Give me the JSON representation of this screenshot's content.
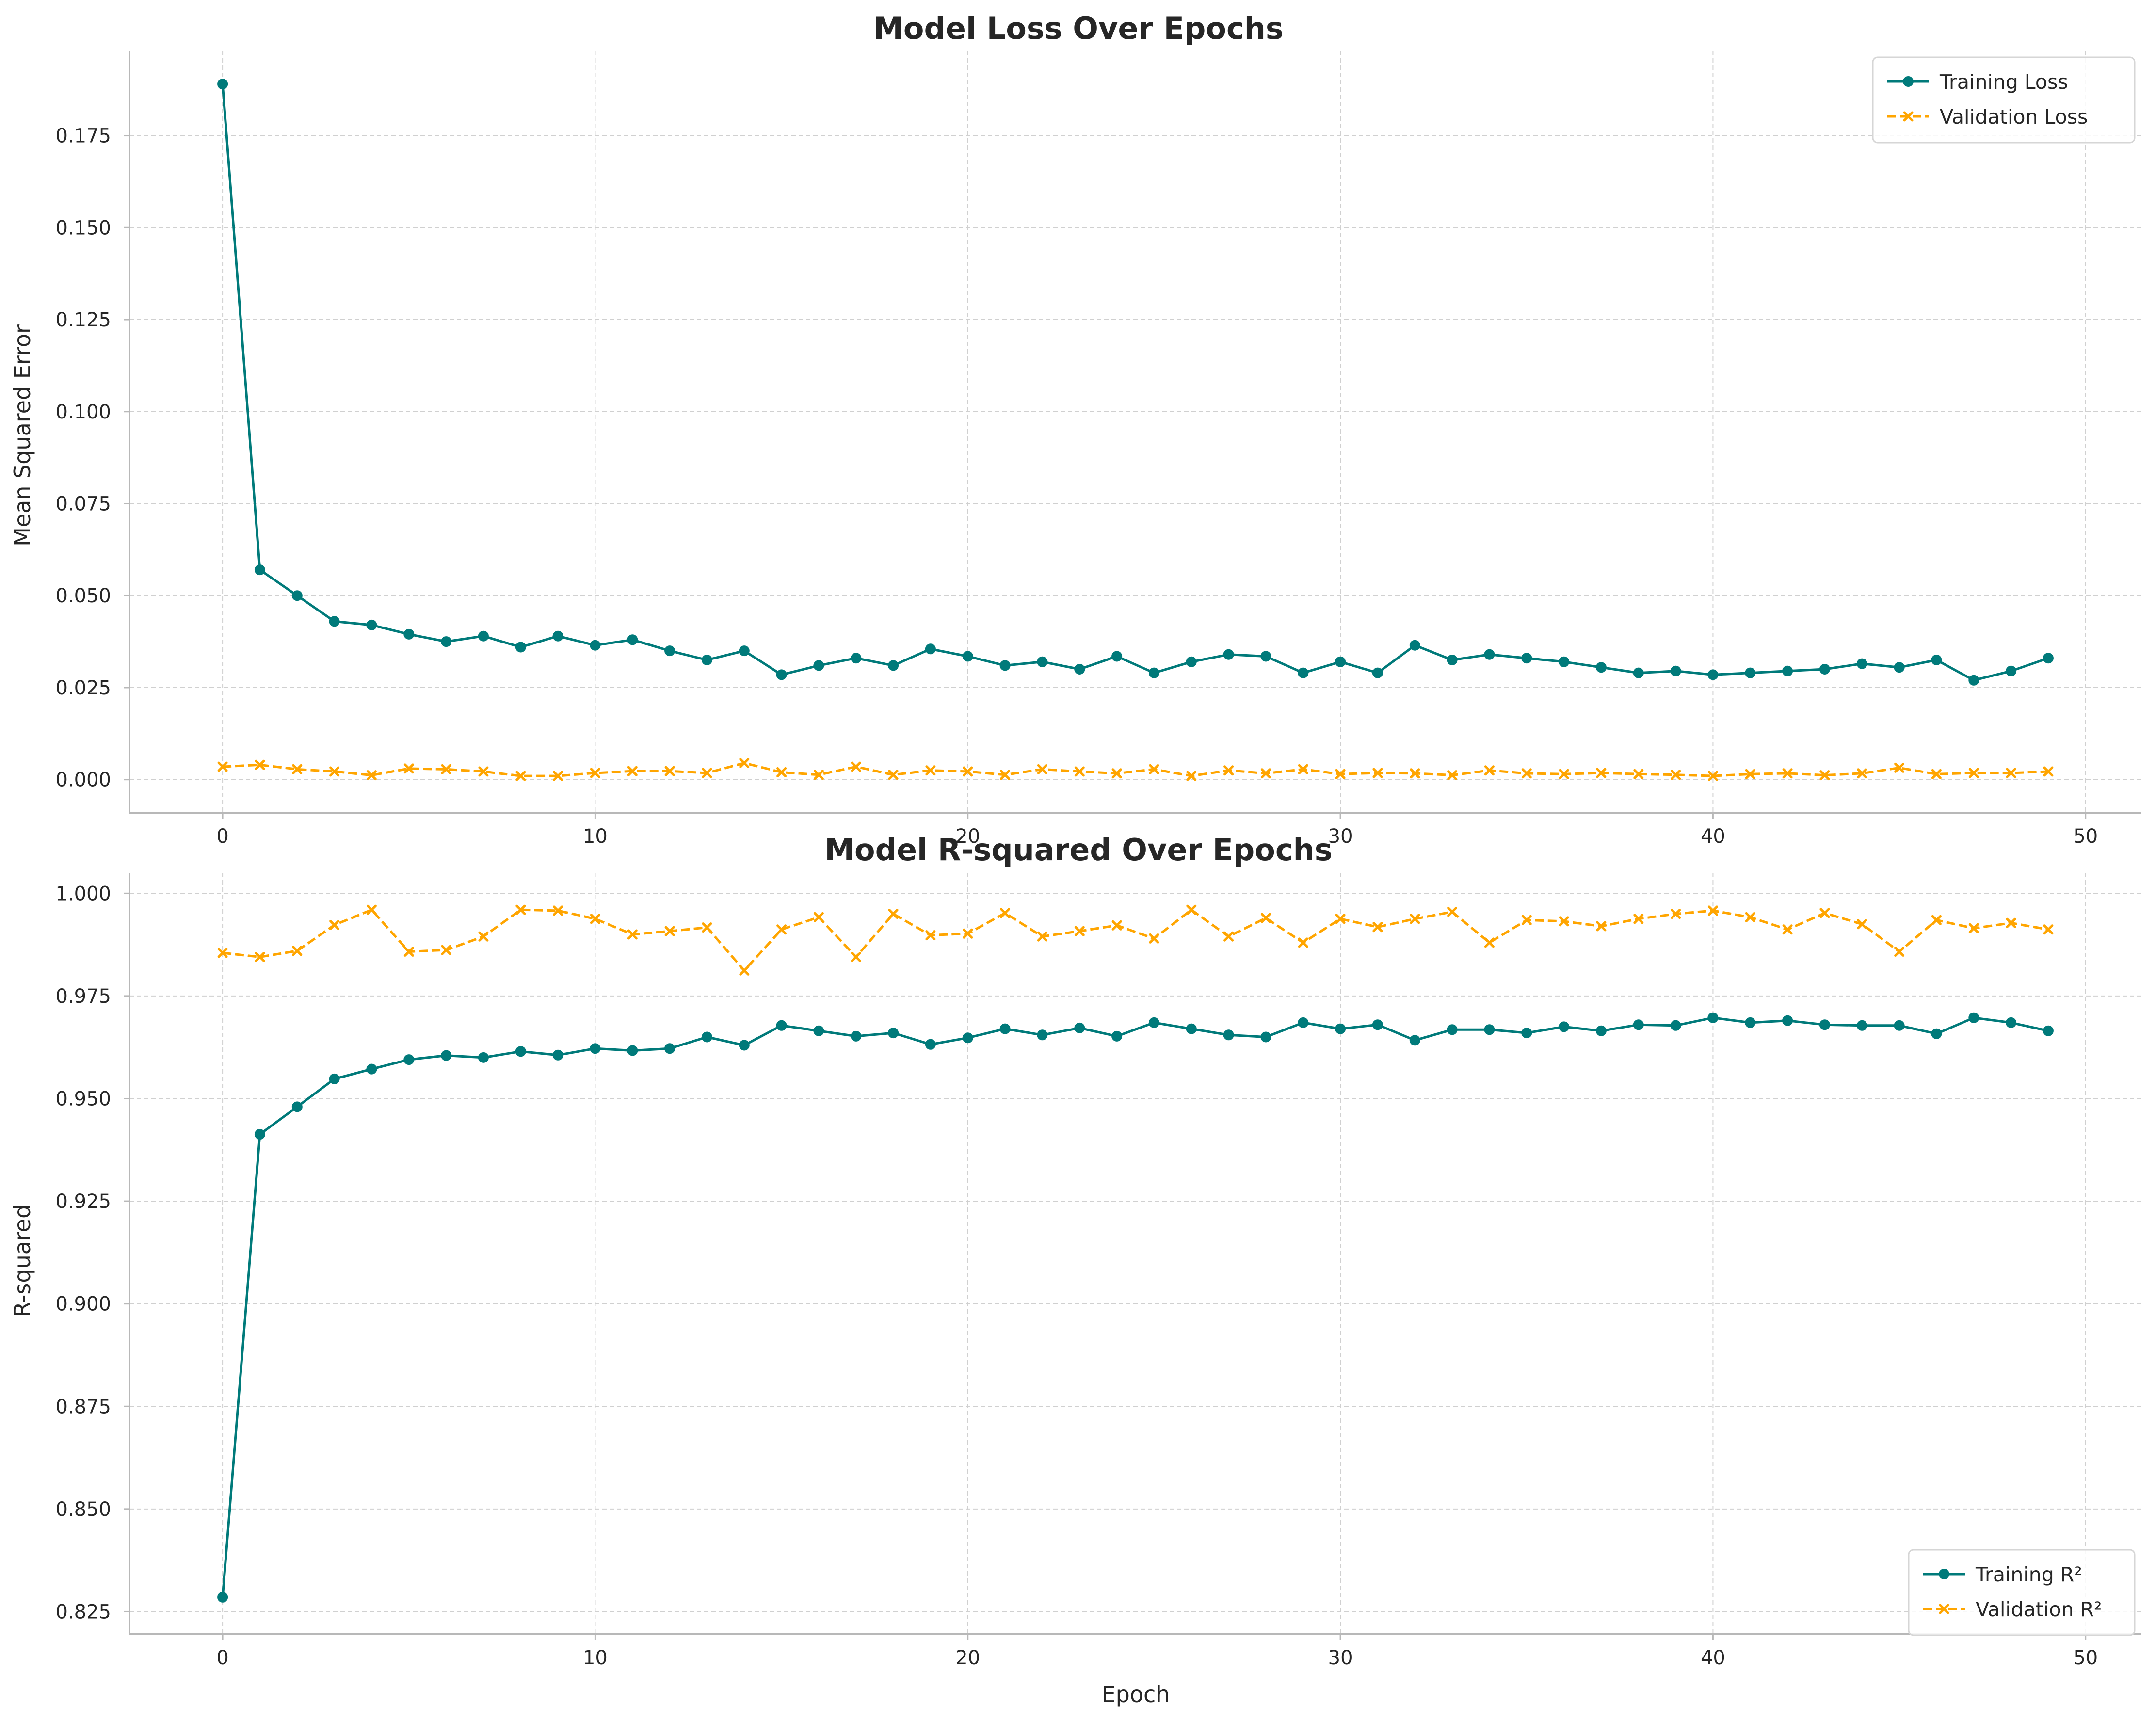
{
  "chart_data": [
    {
      "type": "line",
      "title": "Model Loss Over Epochs",
      "xlabel": "",
      "ylabel": "Mean Squared Error",
      "xlim": [
        -2.5,
        51.5
      ],
      "ylim": [
        -0.009,
        0.198
      ],
      "xticks": [
        0,
        10,
        20,
        30,
        40,
        50
      ],
      "xtick_labels": [
        "0",
        "10",
        "20",
        "30",
        "40",
        "50"
      ],
      "yticks": [
        0.0,
        0.025,
        0.05,
        0.075,
        0.1,
        0.125,
        0.15,
        0.175
      ],
      "ytick_labels": [
        "0.000",
        "0.025",
        "0.050",
        "0.075",
        "0.100",
        "0.125",
        "0.150",
        "0.175"
      ],
      "grid": true,
      "legend": "top-right",
      "x": [
        0,
        1,
        2,
        3,
        4,
        5,
        6,
        7,
        8,
        9,
        10,
        11,
        12,
        13,
        14,
        15,
        16,
        17,
        18,
        19,
        20,
        21,
        22,
        23,
        24,
        25,
        26,
        27,
        28,
        29,
        30,
        31,
        32,
        33,
        34,
        35,
        36,
        37,
        38,
        39,
        40,
        41,
        42,
        43,
        44,
        45,
        46,
        47,
        48,
        49
      ],
      "series": [
        {
          "name": "Training Loss",
          "color": "#007a7a",
          "marker": "circle",
          "linestyle": "solid",
          "values": [
            0.189,
            0.057,
            0.05,
            0.043,
            0.042,
            0.0395,
            0.0375,
            0.039,
            0.036,
            0.039,
            0.0365,
            0.038,
            0.035,
            0.0325,
            0.035,
            0.0285,
            0.031,
            0.033,
            0.031,
            0.0355,
            0.0335,
            0.031,
            0.032,
            0.03,
            0.0335,
            0.029,
            0.032,
            0.034,
            0.0335,
            0.029,
            0.032,
            0.029,
            0.0365,
            0.0325,
            0.034,
            0.033,
            0.032,
            0.0305,
            0.029,
            0.0295,
            0.0285,
            0.029,
            0.0295,
            0.03,
            0.0315,
            0.0305,
            0.0325,
            0.027,
            0.0295,
            0.033
          ]
        },
        {
          "name": "Validation Loss",
          "color": "#ffa500",
          "marker": "x",
          "linestyle": "dashed",
          "values": [
            0.0035,
            0.004,
            0.0028,
            0.0022,
            0.0012,
            0.003,
            0.0028,
            0.0022,
            0.001,
            0.001,
            0.0018,
            0.0023,
            0.0023,
            0.0018,
            0.0045,
            0.002,
            0.0013,
            0.0035,
            0.0013,
            0.0025,
            0.0022,
            0.0013,
            0.0028,
            0.0022,
            0.0017,
            0.0028,
            0.001,
            0.0025,
            0.0017,
            0.0028,
            0.0015,
            0.0018,
            0.0017,
            0.0012,
            0.0025,
            0.0017,
            0.0015,
            0.0018,
            0.0015,
            0.0013,
            0.001,
            0.0015,
            0.0017,
            0.0012,
            0.0017,
            0.0032,
            0.0015,
            0.0018,
            0.0018,
            0.0022
          ]
        }
      ]
    },
    {
      "type": "line",
      "title": "Model R-squared Over Epochs",
      "xlabel": "Epoch",
      "ylabel": "R-squared",
      "xlim": [
        -2.5,
        51.5
      ],
      "ylim": [
        0.8195,
        1.005
      ],
      "xticks": [
        0,
        10,
        20,
        30,
        40,
        50
      ],
      "xtick_labels": [
        "0",
        "10",
        "20",
        "30",
        "40",
        "50"
      ],
      "yticks": [
        0.825,
        0.85,
        0.875,
        0.9,
        0.925,
        0.95,
        0.975,
        1.0
      ],
      "ytick_labels": [
        "0.825",
        "0.850",
        "0.875",
        "0.900",
        "0.925",
        "0.950",
        "0.975",
        "1.000"
      ],
      "grid": true,
      "legend": "bottom-right",
      "x": [
        0,
        1,
        2,
        3,
        4,
        5,
        6,
        7,
        8,
        9,
        10,
        11,
        12,
        13,
        14,
        15,
        16,
        17,
        18,
        19,
        20,
        21,
        22,
        23,
        24,
        25,
        26,
        27,
        28,
        29,
        30,
        31,
        32,
        33,
        34,
        35,
        36,
        37,
        38,
        39,
        40,
        41,
        42,
        43,
        44,
        45,
        46,
        47,
        48,
        49
      ],
      "series": [
        {
          "name": "Training R²",
          "color": "#007a7a",
          "marker": "circle",
          "linestyle": "solid",
          "values": [
            0.8285,
            0.9413,
            0.948,
            0.9548,
            0.9572,
            0.9595,
            0.9605,
            0.96,
            0.9615,
            0.9606,
            0.9622,
            0.9617,
            0.9622,
            0.965,
            0.963,
            0.9678,
            0.9665,
            0.9652,
            0.966,
            0.9632,
            0.9648,
            0.967,
            0.9655,
            0.9672,
            0.9652,
            0.9685,
            0.967,
            0.9655,
            0.965,
            0.9685,
            0.967,
            0.968,
            0.9642,
            0.9668,
            0.9668,
            0.966,
            0.9675,
            0.9665,
            0.968,
            0.9678,
            0.9697,
            0.9685,
            0.969,
            0.968,
            0.9678,
            0.9678,
            0.9658,
            0.9697,
            0.9685,
            0.9665
          ]
        },
        {
          "name": "Validation R²",
          "color": "#ffa500",
          "marker": "x",
          "linestyle": "dashed",
          "values": [
            0.9855,
            0.9845,
            0.986,
            0.9923,
            0.996,
            0.9858,
            0.9862,
            0.9895,
            0.996,
            0.9958,
            0.9938,
            0.99,
            0.9908,
            0.9917,
            0.9812,
            0.9912,
            0.9942,
            0.9845,
            0.995,
            0.9898,
            0.9902,
            0.9952,
            0.9895,
            0.9908,
            0.9922,
            0.989,
            0.996,
            0.9895,
            0.994,
            0.988,
            0.9938,
            0.9918,
            0.9938,
            0.9955,
            0.988,
            0.9935,
            0.9932,
            0.992,
            0.9938,
            0.995,
            0.9958,
            0.9942,
            0.9912,
            0.9952,
            0.9925,
            0.9858,
            0.9935,
            0.9915,
            0.9928,
            0.9912
          ]
        }
      ]
    }
  ]
}
